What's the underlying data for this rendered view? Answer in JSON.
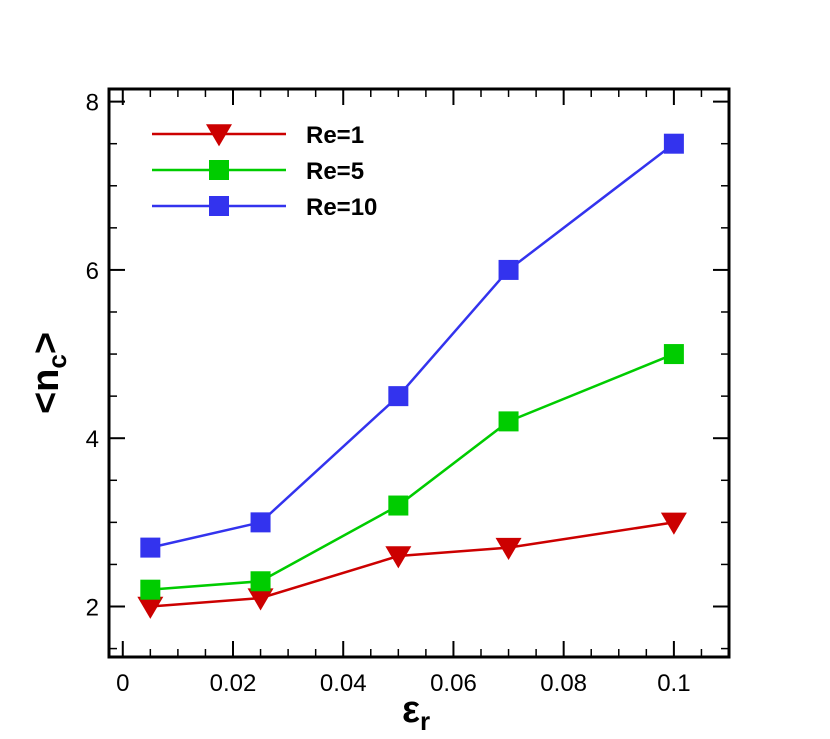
{
  "chart_data": {
    "type": "line",
    "title": "",
    "xlabel": "ε",
    "xlabel_sub": "r",
    "ylabel_left": "<n",
    "ylabel_sub": "c",
    "ylabel_right": ">",
    "xlim": [
      -0.0025,
      0.11
    ],
    "ylim": [
      1.4,
      8.15
    ],
    "x_ticks": [
      0,
      0.02,
      0.04,
      0.06,
      0.08,
      0.1
    ],
    "x_tick_labels": [
      "0",
      "0.02",
      "0.04",
      "0.06",
      "0.08",
      "0.1"
    ],
    "x_minor_ticks": [
      0.005,
      0.01,
      0.015,
      0.025,
      0.03,
      0.035,
      0.045,
      0.05,
      0.055,
      0.065,
      0.07,
      0.075,
      0.085,
      0.09,
      0.095,
      0.105
    ],
    "y_ticks": [
      2,
      4,
      6,
      8
    ],
    "y_tick_labels": [
      "2",
      "4",
      "6",
      "8"
    ],
    "y_minor_ticks": [
      1.5,
      2.5,
      3,
      3.5,
      4.5,
      5,
      5.5,
      6.5,
      7,
      7.5
    ],
    "legend_position": "top-left",
    "series": [
      {
        "name": "Re=1",
        "color": "#cc0000",
        "marker": "triangle-down",
        "x": [
          0.005,
          0.025,
          0.05,
          0.07,
          0.1
        ],
        "y": [
          2.0,
          2.1,
          2.6,
          2.7,
          3.0
        ]
      },
      {
        "name": "Re=5",
        "color": "#00cc00",
        "marker": "square",
        "x": [
          0.005,
          0.025,
          0.05,
          0.07,
          0.1
        ],
        "y": [
          2.2,
          2.3,
          3.2,
          4.2,
          5.0
        ]
      },
      {
        "name": "Re=10",
        "color": "#3333ee",
        "marker": "square",
        "x": [
          0.005,
          0.025,
          0.05,
          0.07,
          0.1
        ],
        "y": [
          2.7,
          3.0,
          4.5,
          6.0,
          7.5
        ]
      }
    ]
  }
}
